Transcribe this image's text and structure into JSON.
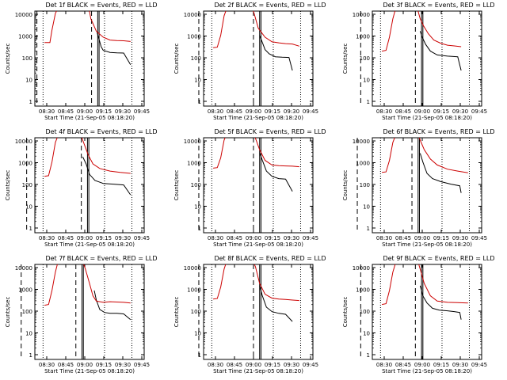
{
  "chart_data": [
    {
      "type": "line",
      "title": "Det 1f BLACK = Events, RED = LLD",
      "ylabel": "Counts/sec",
      "xlabel": "Start Time (21-Sep-05 08:18:20)",
      "x_tick_labels": [
        "08:30",
        "08:45",
        "09:00",
        "09:15",
        "09:30",
        "09:45"
      ],
      "y_tick_labels": [
        "1",
        "10",
        "100",
        "1000",
        "10000"
      ],
      "ylim": [
        1,
        10000
      ],
      "yscale": "log",
      "series": [
        {
          "name": "Events",
          "color": "#000000",
          "x": [
            121,
            124,
            127,
            130,
            140,
            150,
            160,
            170
          ],
          "y": [
            800,
            400,
            200,
            140,
            115,
            110,
            108,
            35
          ]
        },
        {
          "name": "LLD",
          "color": "#cc0000",
          "x": [
            44,
            52,
            55,
            60,
            65,
            72,
            80,
            98,
            106,
            110,
            112,
            120,
            130,
            140,
            150,
            160,
            170
          ],
          "y": [
            300,
            300,
            1000,
            5000,
            10000,
            12000,
            8000,
            12000,
            12000,
            6000,
            3000,
            900,
            500,
            380,
            360,
            355,
            330
          ]
        }
      ]
    },
    {
      "type": "line",
      "title": "Det 2f BLACK = Events, RED = LLD",
      "ylabel": "Counts/sec",
      "xlabel": "Start Time (21-Sep-05 08:18:20)",
      "x_tick_labels": [
        "08:30",
        "08:45",
        "09:00",
        "09:15",
        "09:30",
        "09:45"
      ],
      "y_tick_labels": [
        "1",
        "10",
        "100",
        "1000",
        "10000"
      ],
      "ylim": [
        1,
        10000
      ],
      "yscale": "log",
      "series": [
        {
          "name": "Events",
          "color": "#000000",
          "x": [
            112,
            116,
            120,
            126,
            135,
            145,
            155,
            160
          ],
          "y": [
            600,
            300,
            150,
            100,
            75,
            72,
            70,
            20
          ]
        },
        {
          "name": "LLD",
          "color": "#cc0000",
          "x": [
            44,
            50,
            55,
            60,
            65,
            75,
            88,
            100,
            104,
            110,
            120,
            130,
            140,
            150,
            160,
            170
          ],
          "y": [
            180,
            190,
            600,
            4000,
            10000,
            12000,
            12000,
            11000,
            5000,
            1200,
            500,
            320,
            290,
            270,
            260,
            210
          ]
        }
      ]
    },
    {
      "type": "line",
      "title": "Det 3f BLACK = Events, RED = LLD",
      "ylabel": "Counts/sec",
      "xlabel": "Start Time (21-Sep-05 08:18:20)",
      "x_tick_labels": [
        "08:30",
        "08:45",
        "09:00",
        "09:15",
        "09:30",
        "09:45"
      ],
      "y_tick_labels": [
        "1",
        "10",
        "100",
        "1000",
        "10000"
      ],
      "ylim": [
        1,
        10000
      ],
      "yscale": "log",
      "series": [
        {
          "name": "Events",
          "color": "#000000",
          "x": [
            100,
            103,
            108,
            115,
            125,
            140,
            155,
            160
          ],
          "y": [
            900,
            500,
            250,
            130,
            90,
            80,
            75,
            20
          ]
        },
        {
          "name": "LLD",
          "color": "#cc0000",
          "x": [
            44,
            50,
            55,
            60,
            65,
            75,
            85,
            95,
            100,
            105,
            112,
            120,
            130,
            140,
            150,
            160
          ],
          "y": [
            130,
            140,
            500,
            3000,
            10000,
            12000,
            12000,
            10000,
            3000,
            1500,
            700,
            380,
            280,
            230,
            215,
            200
          ]
        }
      ]
    },
    {
      "type": "line",
      "title": "Det 4f BLACK = Events, RED = LLD",
      "ylabel": "Counts/sec",
      "xlabel": "Start Time (21-Sep-05 08:18:20)",
      "x_tick_labels": [
        "08:30",
        "08:45",
        "09:00",
        "09:15",
        "09:30",
        "09:45"
      ],
      "y_tick_labels": [
        "1",
        "10",
        "100",
        "1000",
        "10000"
      ],
      "ylim": [
        1,
        10000
      ],
      "yscale": "log",
      "series": [
        {
          "name": "Events",
          "color": "#000000",
          "x": [
            100,
            105,
            110,
            118,
            130,
            145,
            160,
            170
          ],
          "y": [
            1000,
            500,
            180,
            100,
            75,
            70,
            65,
            25
          ]
        },
        {
          "name": "LLD",
          "color": "#cc0000",
          "x": [
            44,
            50,
            55,
            60,
            66,
            75,
            85,
            96,
            100,
            108,
            115,
            125,
            140,
            155,
            170
          ],
          "y": [
            150,
            160,
            600,
            4000,
            11000,
            12000,
            12000,
            12000,
            5000,
            1200,
            500,
            320,
            250,
            220,
            200
          ]
        }
      ]
    },
    {
      "type": "line",
      "title": "Det 5f BLACK = Events, RED = LLD",
      "ylabel": "Counts/sec",
      "xlabel": "Start Time (21-Sep-05 08:18:20)",
      "x_tick_labels": [
        "08:30",
        "08:45",
        "09:00",
        "09:15",
        "09:30",
        "09:45"
      ],
      "y_tick_labels": [
        "1",
        "10",
        "100",
        "1000",
        "10000"
      ],
      "ylim": [
        1,
        10000
      ],
      "yscale": "log",
      "series": [
        {
          "name": "Events",
          "color": "#000000",
          "x": [
            112,
            116,
            122,
            130,
            140,
            150,
            160
          ],
          "y": [
            1500,
            700,
            250,
            150,
            120,
            115,
            35
          ]
        },
        {
          "name": "LLD",
          "color": "#cc0000",
          "x": [
            44,
            50,
            55,
            60,
            65,
            75,
            88,
            100,
            106,
            112,
            120,
            130,
            140,
            150,
            160,
            170
          ],
          "y": [
            330,
            350,
            900,
            5000,
            11000,
            12000,
            12000,
            12000,
            6000,
            2000,
            700,
            450,
            420,
            410,
            400,
            380
          ]
        }
      ]
    },
    {
      "type": "line",
      "title": "Det 6f BLACK = Events, RED = LLD",
      "ylabel": "Counts/sec",
      "xlabel": "Start Time (21-Sep-05 08:18:20)",
      "x_tick_labels": [
        "08:30",
        "08:45",
        "09:00",
        "09:15",
        "09:30",
        "09:45"
      ],
      "y_tick_labels": [
        "1",
        "10",
        "100",
        "1000",
        "10000"
      ],
      "ylim": [
        1,
        10000
      ],
      "yscale": "log",
      "series": [
        {
          "name": "Events",
          "color": "#000000",
          "x": [
            100,
            104,
            110,
            118,
            130,
            145,
            158,
            160
          ],
          "y": [
            1400,
            600,
            200,
            120,
            90,
            70,
            60,
            30
          ]
        },
        {
          "name": "LLD",
          "color": "#cc0000",
          "x": [
            44,
            50,
            55,
            60,
            66,
            75,
            85,
            96,
            100,
            106,
            115,
            125,
            140,
            155,
            170
          ],
          "y": [
            220,
            230,
            700,
            4000,
            11000,
            12000,
            12000,
            12000,
            5000,
            2000,
            800,
            450,
            300,
            250,
            210
          ]
        }
      ]
    },
    {
      "type": "line",
      "title": "Det 7f BLACK = Events, RED = LLD",
      "ylabel": "Counts/sec",
      "xlabel": "Start Time (21-Sep-05 08:18:20)",
      "x_tick_labels": [
        "08:30",
        "08:45",
        "09:00",
        "09:15",
        "09:30",
        "09:45"
      ],
      "y_tick_labels": [
        "1",
        "10",
        "100",
        "1000",
        "10000"
      ],
      "ylim": [
        1,
        10000
      ],
      "yscale": "log",
      "series": [
        {
          "name": "Events",
          "color": "#000000",
          "x": [
            117,
            120,
            125,
            132,
            140,
            150,
            160,
            170
          ],
          "y": [
            500,
            200,
            80,
            60,
            55,
            55,
            52,
            30
          ]
        },
        {
          "name": "LLD",
          "color": "#cc0000",
          "x": [
            44,
            50,
            55,
            60,
            65,
            75,
            85,
            98,
            104,
            110,
            115,
            120,
            130,
            140,
            150,
            160,
            170
          ],
          "y": [
            120,
            130,
            500,
            3000,
            11000,
            12000,
            12000,
            12000,
            4000,
            1000,
            300,
            180,
            160,
            170,
            165,
            160,
            150
          ]
        }
      ]
    },
    {
      "type": "line",
      "title": "Det 8f BLACK = Events, RED = LLD",
      "ylabel": "Counts/sec",
      "xlabel": "Start Time (21-Sep-05 08:18:20)",
      "x_tick_labels": [
        "08:30",
        "08:45",
        "09:00",
        "09:15",
        "09:30",
        "09:45"
      ],
      "y_tick_labels": [
        "1",
        "10",
        "100",
        "1000",
        "10000"
      ],
      "ylim": [
        1,
        10000
      ],
      "yscale": "log",
      "series": [
        {
          "name": "Events",
          "color": "#000000",
          "x": [
            112,
            116,
            122,
            130,
            140,
            150,
            160
          ],
          "y": [
            800,
            300,
            100,
            65,
            55,
            50,
            25
          ]
        },
        {
          "name": "LLD",
          "color": "#cc0000",
          "x": [
            44,
            50,
            55,
            60,
            65,
            75,
            88,
            100,
            106,
            112,
            120,
            130,
            140,
            150,
            160,
            170
          ],
          "y": [
            220,
            230,
            700,
            4000,
            11000,
            12000,
            12000,
            12000,
            5000,
            1000,
            350,
            240,
            220,
            210,
            200,
            190
          ]
        }
      ]
    },
    {
      "type": "line",
      "title": "Det 9f BLACK = Events, RED = LLD",
      "ylabel": "Counts/sec",
      "xlabel": "Start Time (21-Sep-05 08:18:20)",
      "x_tick_labels": [
        "08:30",
        "08:45",
        "09:00",
        "09:15",
        "09:30",
        "09:45"
      ],
      "y_tick_labels": [
        "1",
        "10",
        "100",
        "1000",
        "10000"
      ],
      "ylim": [
        1,
        10000
      ],
      "yscale": "log",
      "series": [
        {
          "name": "Events",
          "color": "#000000",
          "x": [
            100,
            104,
            110,
            118,
            128,
            140,
            150,
            158,
            160
          ],
          "y": [
            800,
            300,
            150,
            90,
            75,
            70,
            65,
            60,
            30
          ]
        },
        {
          "name": "LLD",
          "color": "#cc0000",
          "x": [
            44,
            50,
            55,
            60,
            66,
            75,
            85,
            95,
            100,
            106,
            115,
            125,
            140,
            155,
            170
          ],
          "y": [
            130,
            140,
            500,
            3000,
            11000,
            12000,
            12000,
            12000,
            4000,
            1000,
            300,
            180,
            160,
            155,
            150
          ]
        }
      ]
    }
  ]
}
